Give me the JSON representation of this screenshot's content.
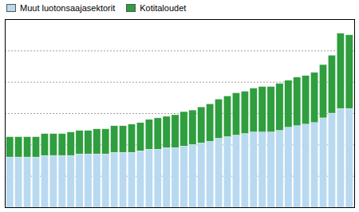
{
  "chart_data": {
    "type": "bar",
    "stacked": true,
    "categories": [
      null,
      null,
      null,
      null,
      null,
      null,
      null,
      null,
      null,
      null,
      null,
      null,
      null,
      null,
      null,
      null,
      null,
      null,
      null,
      null,
      null,
      null,
      null,
      null,
      null,
      null,
      null,
      null,
      null,
      null,
      null,
      null,
      null,
      null,
      null,
      null,
      null,
      null,
      null,
      null
    ],
    "series": [
      {
        "name": "Muut luotonsaajasektorit",
        "color": "#b8d9f0",
        "values": [
          32,
          32,
          32,
          32,
          33,
          33,
          33,
          33,
          34,
          34,
          34,
          34,
          35,
          35,
          35,
          36,
          37,
          37,
          38,
          38,
          39,
          40,
          41,
          42,
          44,
          45,
          46,
          47,
          48,
          48,
          48,
          49,
          51,
          52,
          53,
          54,
          57,
          60,
          63,
          63
        ]
      },
      {
        "name": "Kotitaloudet",
        "color": "#2e9e3e",
        "values": [
          13,
          13,
          13,
          13,
          14,
          14,
          14,
          15,
          15,
          15,
          16,
          16,
          17,
          17,
          18,
          18,
          19,
          20,
          20,
          21,
          22,
          22,
          23,
          24,
          25,
          26,
          27,
          27,
          28,
          29,
          29,
          30,
          30,
          31,
          31,
          32,
          34,
          37,
          48,
          47
        ]
      }
    ],
    "ylim": [
      0,
      120
    ],
    "yticks": [
      20,
      40,
      60,
      80,
      100,
      120
    ],
    "grid": true,
    "legend": "upper left",
    "tick_labels": false
  }
}
